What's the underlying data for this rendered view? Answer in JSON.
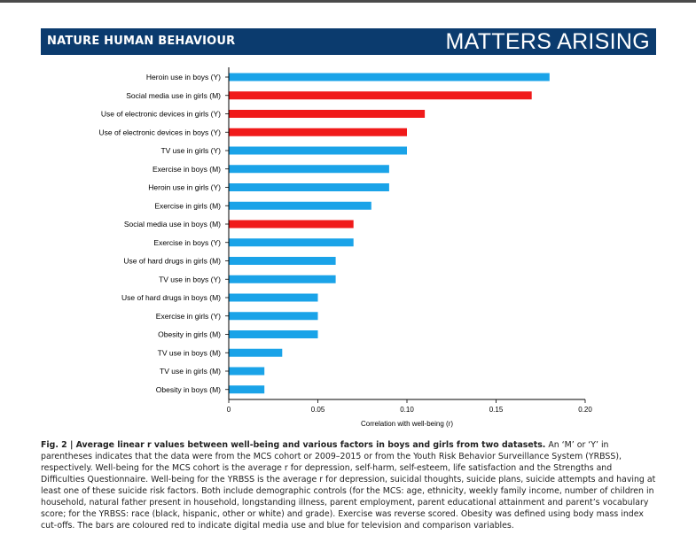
{
  "header": {
    "journal": "NATURE HUMAN BEHAVIOUR",
    "section": "MATTERS ARISING"
  },
  "colors": {
    "header_bg": "#0b3b6e",
    "digital": "#f01a1a",
    "comparison": "#1aa3e8",
    "axis": "#000000"
  },
  "chart_data": {
    "type": "bar",
    "orientation": "horizontal",
    "xlabel": "Correlation with well-being (r)",
    "xlim": [
      0,
      0.2
    ],
    "xticks": [
      0,
      0.05,
      0.1,
      0.15,
      0.2
    ],
    "xtick_labels": [
      "0",
      "0.05",
      "0.10",
      "0.15",
      "0.20"
    ],
    "grid": false,
    "categories": [
      "Heroin use in boys (Y)",
      "Social media use in girls (M)",
      "Use of electronic devices in girls (Y)",
      "Use of electronic devices in boys (Y)",
      "TV use in girls (Y)",
      "Exercise in boys (M)",
      "Heroin use in girls (Y)",
      "Exercise in girls (M)",
      "Social media use in boys (M)",
      "Exercise in boys (Y)",
      "Use of hard drugs in girls (M)",
      "TV use in boys (Y)",
      "Use of hard drugs in boys (M)",
      "Exercise in girls (Y)",
      "Obesity in girls (M)",
      "TV use in boys (M)",
      "TV use in girls (M)",
      "Obesity in boys (M)"
    ],
    "values": [
      0.18,
      0.17,
      0.11,
      0.1,
      0.1,
      0.09,
      0.09,
      0.08,
      0.07,
      0.07,
      0.06,
      0.06,
      0.05,
      0.05,
      0.05,
      0.03,
      0.02,
      0.02
    ],
    "digital_media": [
      false,
      true,
      true,
      true,
      false,
      false,
      false,
      false,
      true,
      false,
      false,
      false,
      false,
      false,
      false,
      false,
      false,
      false
    ]
  },
  "caption": {
    "title": "Fig. 2 | Average linear r values between well-being and various factors in boys and girls from two datasets.",
    "body": " An ‘M’ or ‘Y’ in parentheses indicates that the data were from the MCS cohort or 2009–2015 or from the Youth Risk Behavior Surveillance System (YRBSS), respectively. Well-being for the MCS cohort is the average r for depression, self-harm, self-esteem, life satisfaction and the Strengths and Difficulties Questionnaire. Well-being for the YRBSS is the average r for depression, suicidal thoughts, suicide plans, suicide attempts and having at least one of these suicide risk factors. Both include demographic controls (for the MCS: age, ethnicity, weekly family income, number of children in household, natural father present in household, longstanding illness, parent employment, parent educational attainment and parent’s vocabulary score; for the YRBSS: race (black, hispanic, other or white) and grade). Exercise was reverse scored. Obesity was defined using body mass index cut-offs. The bars are coloured red to indicate digital media use and blue for television and comparison variables."
  }
}
